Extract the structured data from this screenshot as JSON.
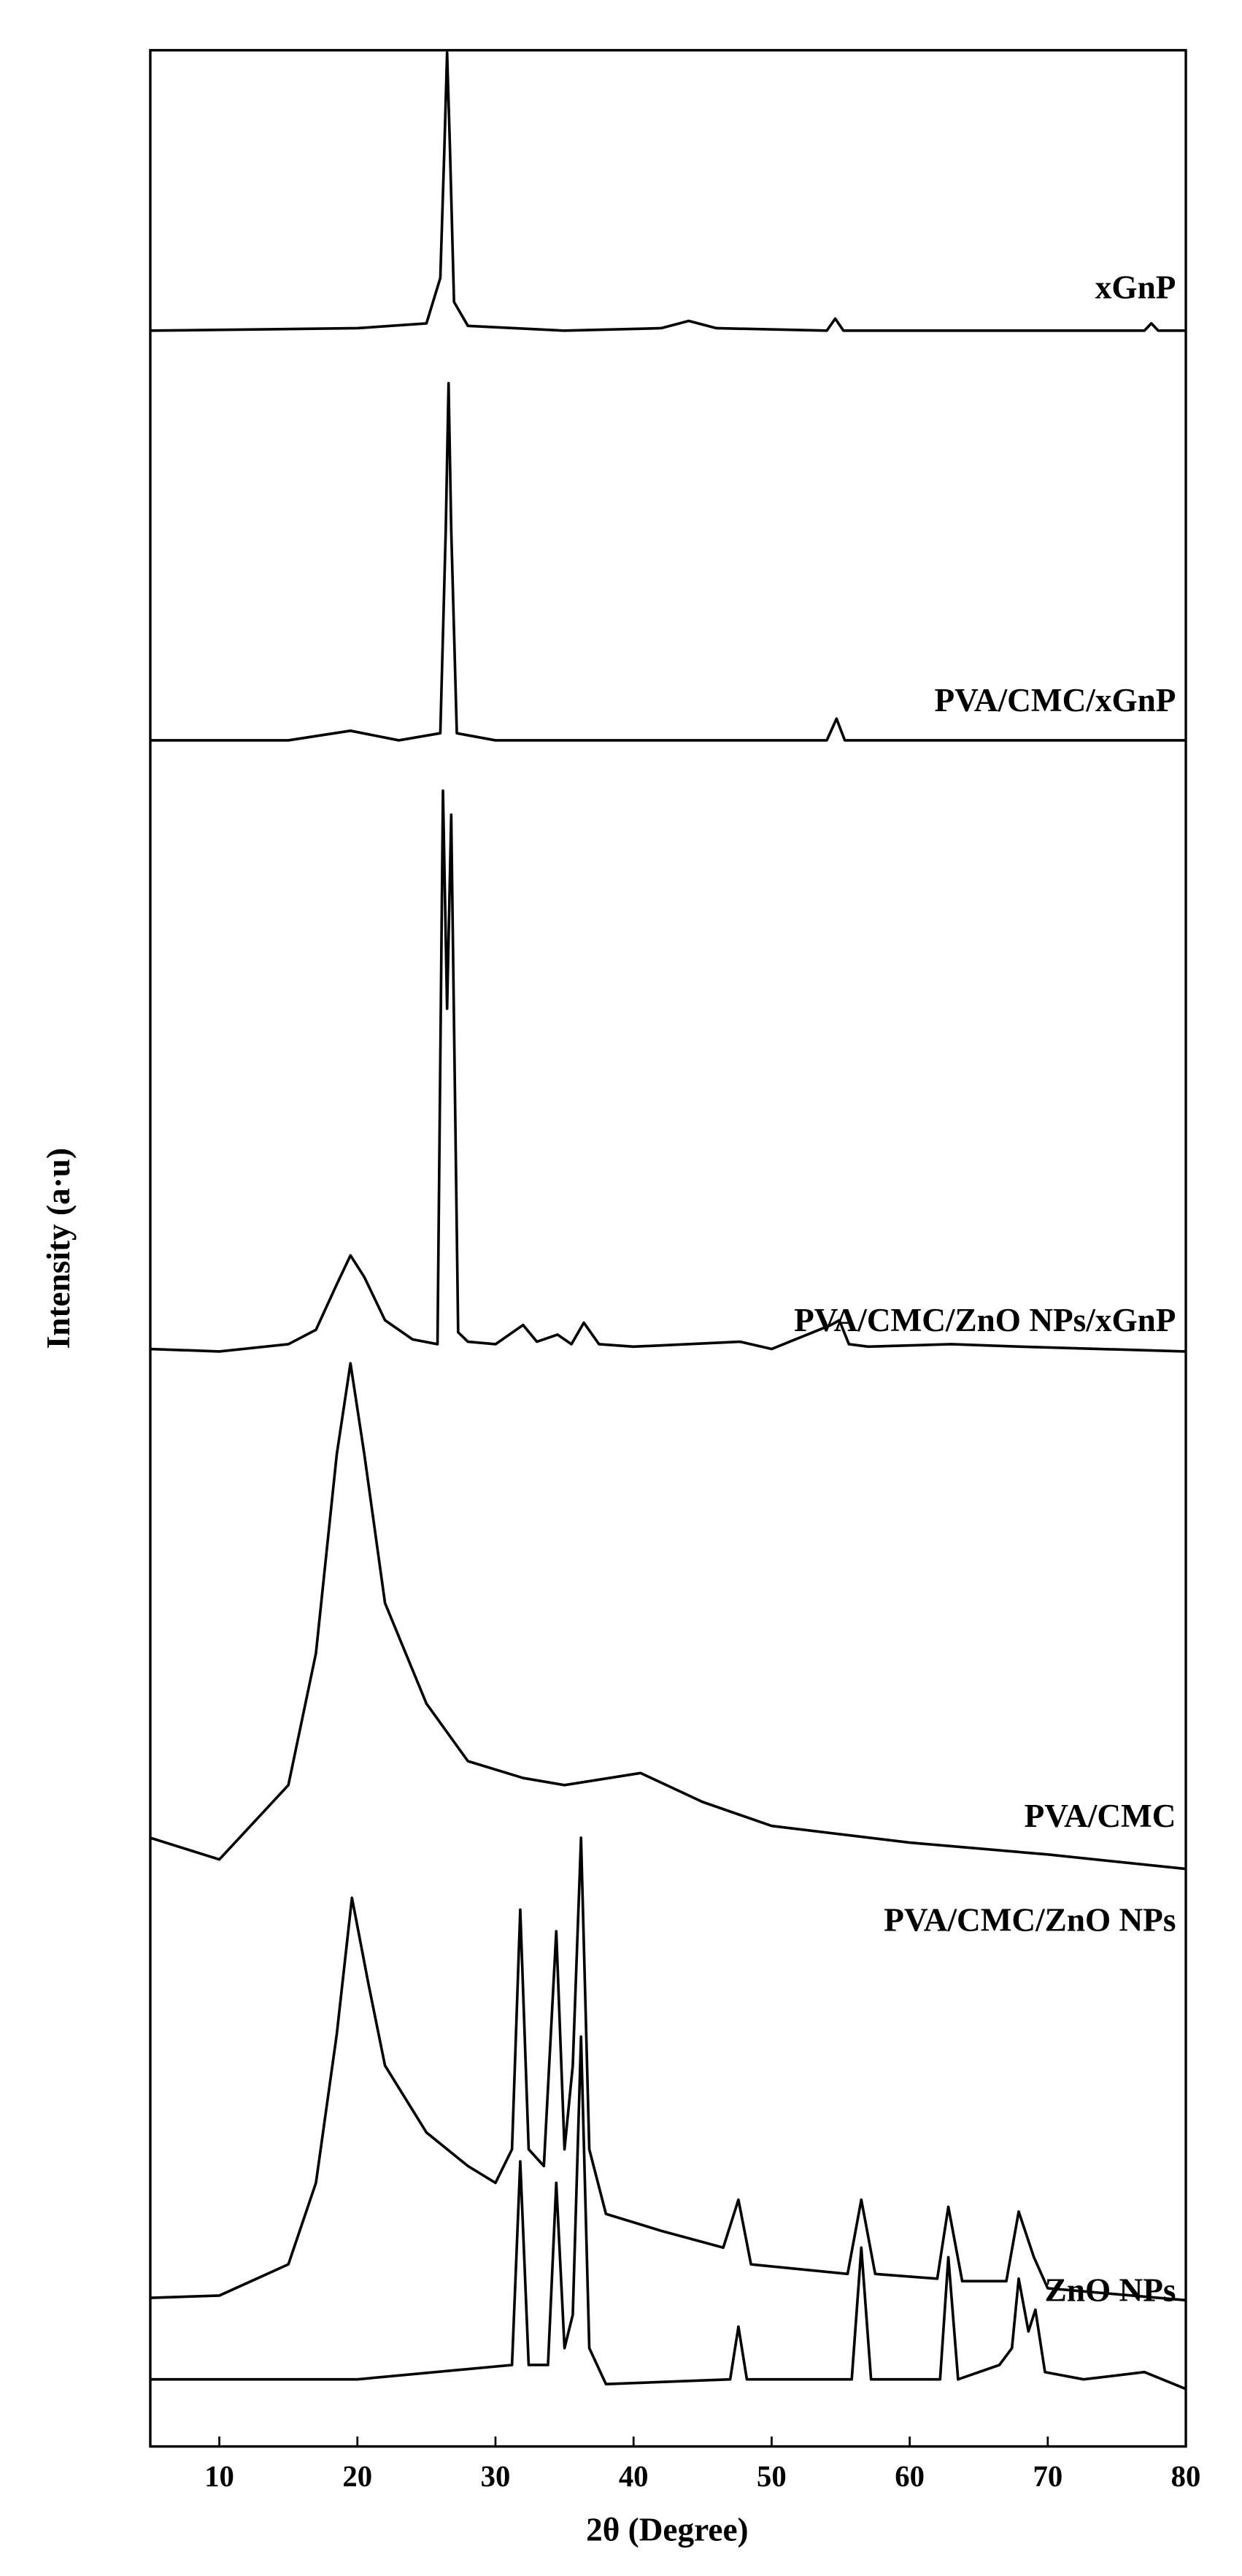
{
  "chart_data": {
    "type": "line",
    "xlabel": "2θ (Degree)",
    "ylabel": "Intensity (a·u)",
    "xlim": [
      5,
      80
    ],
    "xticks": [
      10,
      20,
      30,
      40,
      50,
      60,
      70,
      80
    ],
    "ylim": [
      0,
      100
    ],
    "series": [
      {
        "name": "xGnP",
        "color": "#000000",
        "x": [
          5,
          20,
          25,
          26,
          26.3,
          26.5,
          26.7,
          27,
          28,
          35,
          42,
          44,
          46,
          54,
          54.6,
          55.2,
          77,
          77.5,
          78,
          80
        ],
        "values": [
          88.3,
          88.4,
          88.6,
          90.5,
          96,
          99.9,
          96,
          89.5,
          88.5,
          88.3,
          88.4,
          88.7,
          88.4,
          88.3,
          88.8,
          88.3,
          88.3,
          88.6,
          88.3,
          88.3
        ]
      },
      {
        "name": "PVA/CMC/xGnP",
        "color": "#000000",
        "x": [
          5,
          15,
          19.5,
          23,
          26,
          26.4,
          26.6,
          26.8,
          27.2,
          30,
          54,
          54.7,
          55.3,
          80
        ],
        "values": [
          71.2,
          71.2,
          71.6,
          71.2,
          71.5,
          80,
          86.1,
          80,
          71.5,
          71.2,
          71.2,
          72.1,
          71.2,
          71.2
        ]
      },
      {
        "name": "PVA/CMC/ZnO NPs/xGnP",
        "color": "#000000",
        "x": [
          5,
          10,
          15,
          17,
          18.5,
          19.5,
          20.5,
          22,
          24,
          25.8,
          26.2,
          26.5,
          26.8,
          27.3,
          28,
          30,
          32,
          33,
          34.5,
          35.5,
          36.4,
          37.5,
          40,
          47.7,
          50,
          54.3,
          54.9,
          55.6,
          57,
          63,
          68,
          80
        ],
        "values": [
          45.8,
          45.7,
          46,
          46.6,
          48.5,
          49.7,
          48.8,
          47,
          46.2,
          46,
          69.1,
          60,
          68.1,
          46.5,
          46.1,
          46,
          46.8,
          46.1,
          46.4,
          46,
          46.9,
          46,
          45.9,
          46.1,
          45.8,
          46.8,
          47,
          46,
          45.9,
          46,
          45.9,
          45.7
        ]
      },
      {
        "name": "PVA/CMC",
        "color": "#000000",
        "x": [
          5,
          10,
          15,
          17,
          18.5,
          19.5,
          20.5,
          22,
          25,
          28,
          32,
          35,
          40.5,
          45,
          50,
          60,
          70,
          80
        ],
        "values": [
          25.4,
          24.5,
          27.6,
          33.1,
          41.4,
          45.2,
          41.4,
          35.2,
          31,
          28.6,
          27.9,
          27.6,
          28.1,
          26.9,
          25.9,
          25.2,
          24.7,
          24.1
        ]
      },
      {
        "name": "PVA/CMC/ZnO NPs",
        "color": "#000000",
        "x": [
          5,
          10,
          15,
          17,
          18.5,
          19.6,
          20.8,
          22,
          25,
          28,
          30,
          31.2,
          31.8,
          32.4,
          33.5,
          34.4,
          35,
          35.6,
          36.2,
          36.8,
          38,
          42,
          46.5,
          47.6,
          48.5,
          55.5,
          56.5,
          57.5,
          62,
          62.8,
          63.8,
          67,
          67.9,
          69,
          70,
          80
        ],
        "values": [
          6.2,
          6.3,
          7.6,
          11,
          17.2,
          22.9,
          19.3,
          15.9,
          13.1,
          11.7,
          11,
          12.4,
          22.4,
          12.4,
          11.7,
          21.5,
          12.4,
          15.9,
          25.4,
          12.4,
          9.7,
          9,
          8.3,
          10.3,
          7.6,
          7.2,
          10.3,
          7.2,
          7,
          10,
          6.9,
          6.9,
          9.8,
          7.9,
          6.6,
          6.1
        ]
      },
      {
        "name": "ZnO NPs",
        "color": "#000000",
        "x": [
          5,
          20,
          31.2,
          31.8,
          32.4,
          33.8,
          34.4,
          35,
          35.6,
          36.2,
          36.8,
          38,
          47,
          47.6,
          48.2,
          55.8,
          56.5,
          57.2,
          62.2,
          62.8,
          63.5,
          66.5,
          67.4,
          67.9,
          68.6,
          69.1,
          69.8,
          72.6,
          77,
          80
        ],
        "values": [
          2.8,
          2.8,
          3.4,
          11.9,
          3.4,
          3.4,
          11,
          4.1,
          5.5,
          17.1,
          4.1,
          2.6,
          2.8,
          5,
          2.8,
          2.8,
          8.3,
          2.8,
          2.8,
          7.9,
          2.8,
          3.4,
          4.1,
          7,
          4.8,
          5.7,
          3.1,
          2.8,
          3.1,
          2.4
        ]
      }
    ]
  }
}
